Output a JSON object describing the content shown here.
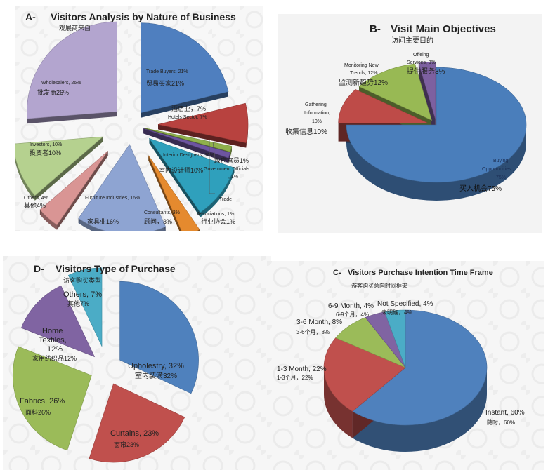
{
  "chart_data": [
    {
      "id": "A",
      "type": "pie",
      "title": "Visitors Analysis by Nature of Business",
      "prefix": "A-",
      "subtitle": "观展商来自",
      "slices": [
        {
          "label": "Trade Buyers, 21%",
          "label_cn": "贸易买家21%",
          "value": 21,
          "color": "#4f7fbf"
        },
        {
          "label": "Hotels Sector, 7%",
          "label_cn": "酒店业，7%",
          "value": 7,
          "color": "#b8423f"
        },
        {
          "label": "",
          "label_cn": "",
          "value": 1,
          "color": "#8fb04c"
        },
        {
          "label": "",
          "label_cn": "",
          "value": 1,
          "color": "#6d55a0"
        },
        {
          "label": "Interior Designers, 10%",
          "label_cn": "室内设计师10%",
          "value": 10,
          "color": "#2fa0bc"
        },
        {
          "label": "Consultants, 3%",
          "label_cn": "顾问，3%",
          "value": 3,
          "color": "#e58a2e"
        },
        {
          "label": "Furniture Industries, 16%",
          "label_cn": "家具业16%",
          "value": 16,
          "color": "#8ea4d2"
        },
        {
          "label": "Others, 4%",
          "label_cn": "其他4%",
          "value": 4,
          "color": "#d99594"
        },
        {
          "label": "Investors, 10%",
          "label_cn": "投资者10%",
          "value": 10,
          "color": "#b5d18f"
        },
        {
          "label": "Wholesalers, 26%",
          "label_cn": "批发商26%",
          "value": 26,
          "color": "#b3a5cf"
        }
      ],
      "annotations": [
        {
          "text": "政府官员1%"
        },
        {
          "text": "Government  Officials"
        },
        {
          "text": ", 1%"
        },
        {
          "text": "Trade"
        },
        {
          "text": "Associations, 1%"
        },
        {
          "text": "行业协会1%"
        }
      ]
    },
    {
      "id": "B",
      "type": "pie",
      "title": "Visit Main Objectives",
      "prefix": "B-",
      "subtitle": "访问主要目的",
      "slices": [
        {
          "label": "Buying Opportunities, 75%",
          "label_cn": "买入机会75%",
          "value": 75,
          "color": "#4a7ebb"
        },
        {
          "label": "Gathering Information, 10%",
          "label_cn": "收集信息10%",
          "value": 10,
          "color": "#be4b48"
        },
        {
          "label": "Monitoring New Trends, 12%",
          "label_cn": "监测新趋势12%",
          "value": 12,
          "color": "#98b954"
        },
        {
          "label": "Offeing Services, 3%",
          "label_cn": "提供服务3%",
          "value": 3,
          "color": "#7d60a0"
        }
      ]
    },
    {
      "id": "D",
      "type": "pie",
      "title": "Visitors Type of Purchase",
      "prefix": "D-",
      "subtitle": "访客购买类型",
      "slices": [
        {
          "label": "Upholestry, 32%",
          "label_cn": "室内装潢32%",
          "value": 32,
          "color": "#4f81bd"
        },
        {
          "label": "Curtains, 23%",
          "label_cn": "窗帘23%",
          "value": 23,
          "color": "#c0504d"
        },
        {
          "label": "Fabrics, 26%",
          "label_cn": "面料26%",
          "value": 26,
          "color": "#9bbb59"
        },
        {
          "label": "Home Textiles, 12%",
          "label_cn": "家用纺织品12%",
          "value": 12,
          "color": "#8064a2"
        },
        {
          "label": "Others, 7%",
          "label_cn": "其他7%",
          "value": 7,
          "color": "#4bacc6"
        }
      ]
    },
    {
      "id": "C",
      "type": "pie",
      "title": "Visitors Purchase Intention Time Frame",
      "prefix": "C-",
      "subtitle": "游客购买意向时间框架",
      "slices": [
        {
          "label": "Instant, 60%",
          "label_cn": "随时，60%",
          "value": 60,
          "color": "#4f81bd"
        },
        {
          "label": "1-3 Month, 22%",
          "label_cn": "1-3个月，22%",
          "value": 22,
          "color": "#c0504d"
        },
        {
          "label": "3-6 Month, 8%",
          "label_cn": "3-6个月，8%",
          "value": 8,
          "color": "#9bbb59"
        },
        {
          "label": "6-9 Month, 4%",
          "label_cn": "6-9个月，4%",
          "value": 4,
          "color": "#8064a2"
        },
        {
          "label": "Not Specified, 4%",
          "label_cn": "未明确，4%",
          "value": 4,
          "color": "#4bacc6"
        }
      ]
    }
  ]
}
